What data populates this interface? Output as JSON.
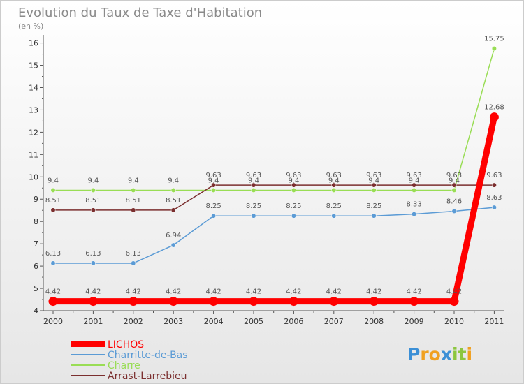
{
  "chart_data": {
    "type": "line",
    "title": "Evolution du Taux de Taxe d'Habitation",
    "subtitle": "(en %)",
    "x": [
      "2000",
      "2001",
      "2002",
      "2003",
      "2004",
      "2005",
      "2006",
      "2007",
      "2008",
      "2009",
      "2010",
      "2011"
    ],
    "y_ticks": [
      "4",
      "5",
      "6",
      "7",
      "8",
      "9",
      "10",
      "11",
      "12",
      "13",
      "14",
      "15",
      "16"
    ],
    "ylim": [
      4,
      16.3
    ],
    "series": [
      {
        "name": "LICHOS",
        "color": "#ff0000",
        "values": [
          4.42,
          4.42,
          4.42,
          4.42,
          4.42,
          4.42,
          4.42,
          4.42,
          4.42,
          4.42,
          4.42,
          12.68
        ],
        "labels": [
          "4.42",
          "4.42",
          "4.42",
          "4.42",
          "4.42",
          "4.42",
          "4.42",
          "4.42",
          "4.42",
          "4.42",
          "4.42",
          "12.68"
        ]
      },
      {
        "name": "Charritte-de-Bas",
        "color": "#5b9bd5",
        "values": [
          6.13,
          6.13,
          6.13,
          6.94,
          8.25,
          8.25,
          8.25,
          8.25,
          8.25,
          8.33,
          8.46,
          8.63
        ],
        "labels": [
          "6.13",
          "6.13",
          "6.13",
          "6.94",
          "8.25",
          "8.25",
          "8.25",
          "8.25",
          "8.25",
          "8.33",
          "8.46",
          "8.63"
        ]
      },
      {
        "name": "Charre",
        "color": "#99dd55",
        "values": [
          9.4,
          9.4,
          9.4,
          9.4,
          9.4,
          9.4,
          9.4,
          9.4,
          9.4,
          9.4,
          9.4,
          15.75
        ],
        "labels": [
          "9.4",
          "9.4",
          "9.4",
          "9.4",
          "9.4",
          "9.4",
          "9.4",
          "9.4",
          "9.4",
          "9.4",
          "9.4",
          "15.75"
        ]
      },
      {
        "name": "Arrast-Larrebieu",
        "color": "#7b2f2f",
        "values": [
          8.51,
          8.51,
          8.51,
          8.51,
          9.63,
          9.63,
          9.63,
          9.63,
          9.63,
          9.63,
          9.63,
          9.63
        ],
        "labels": [
          "8.51",
          "8.51",
          "8.51",
          "8.51",
          "9.63",
          "9.63",
          "9.63",
          "9.63",
          "9.63",
          "9.63",
          "9.63",
          "9.63"
        ]
      }
    ],
    "legend": [
      "LICHOS",
      "Charritte-de-Bas",
      "Charre",
      "Arrast-Larrebieu"
    ]
  },
  "branding": {
    "logo_letters": [
      "P",
      "r",
      "o",
      "x",
      "i",
      "t",
      "i"
    ],
    "logo_colors": [
      "#3b8fd6",
      "#f0a020",
      "#f0a020",
      "#3b8fd6",
      "#8cc63f",
      "#8cc63f",
      "#f0a020"
    ]
  }
}
